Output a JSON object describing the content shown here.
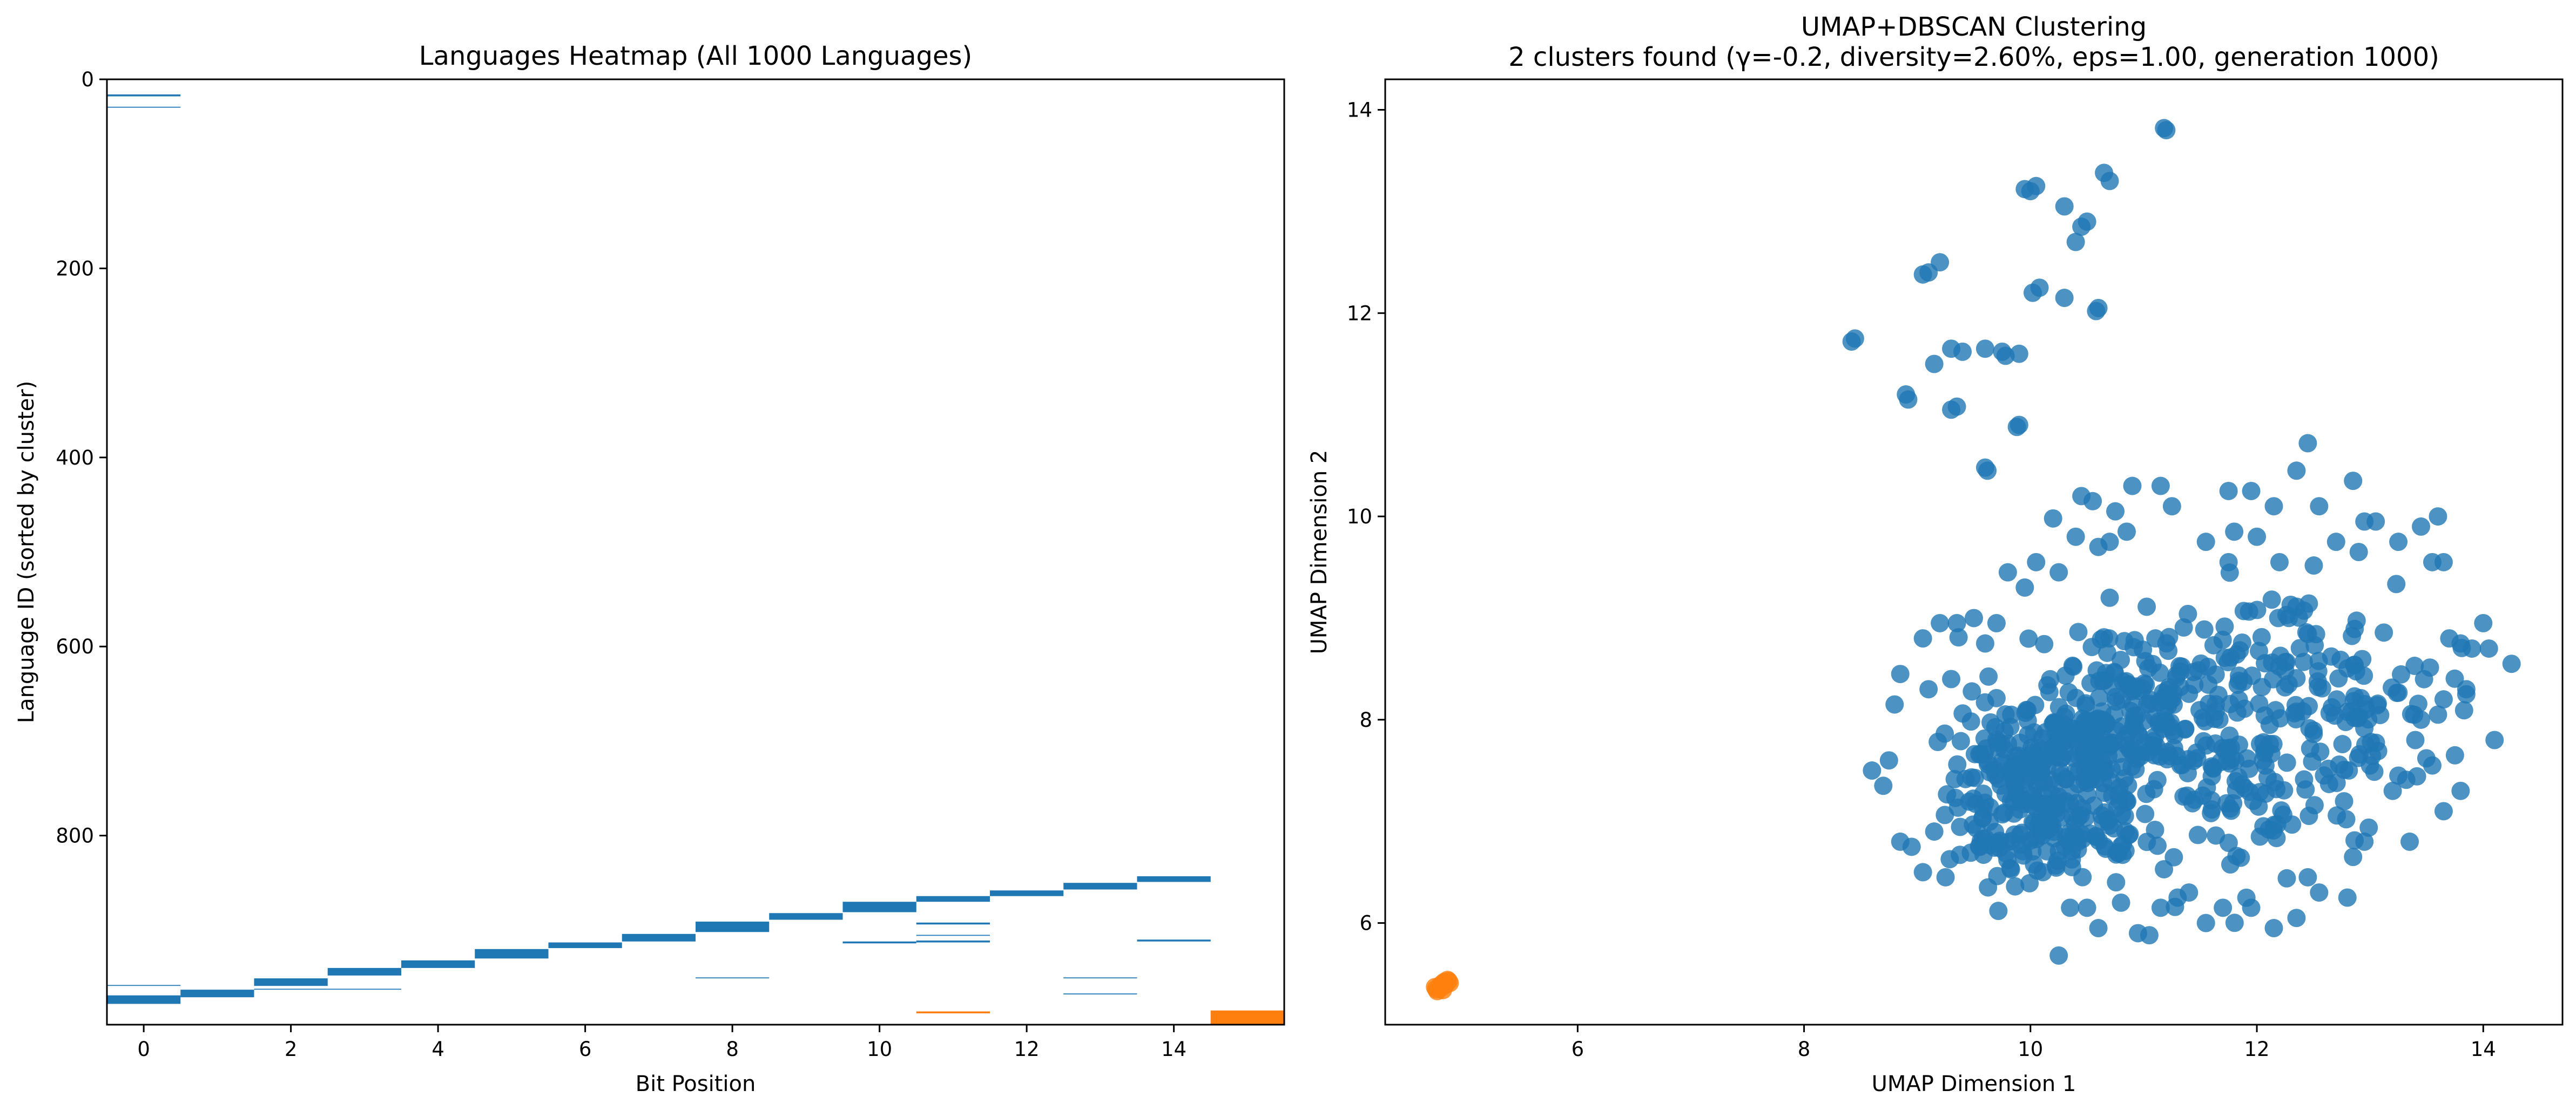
{
  "colors": {
    "cluster_0": "#1f77b4",
    "cluster_1": "#ff7f0e",
    "axes": "#000000"
  },
  "heatmap": {
    "title": "Languages Heatmap (All 1000 Languages)",
    "xlabel": "Bit Position",
    "ylabel": "Language ID (sorted by cluster)",
    "xticks": [
      "0",
      "2",
      "4",
      "6",
      "8",
      "10",
      "12",
      "14"
    ],
    "yticks": [
      "0",
      "200",
      "400",
      "600",
      "800"
    ]
  },
  "scatter": {
    "title_line1": "UMAP+DBSCAN Clustering",
    "title_line2": "2 clusters found (γ=-0.2, diversity=2.60%, eps=1.00, generation 1000)",
    "xlabel": "UMAP Dimension 1",
    "ylabel": "UMAP Dimension 2",
    "xticks": [
      "6",
      "8",
      "10",
      "12",
      "14"
    ],
    "yticks": [
      "6",
      "8",
      "10",
      "12",
      "14"
    ]
  },
  "chart_data": [
    {
      "type": "heatmap",
      "title": "Languages Heatmap (All 1000 Languages)",
      "xlabel": "Bit Position",
      "ylabel": "Language ID (sorted by cluster)",
      "xlim": [
        -0.5,
        15.5
      ],
      "ylim": [
        1000,
        0
      ],
      "n_rows": 1000,
      "n_cols": 16,
      "values_legend": "0 = bit off (white); 1 = bit on, colored by cluster (0 = blue, 1 = orange)",
      "cells": [
        {
          "col": 0,
          "rows": [
            16,
            18
          ],
          "cluster": 0
        },
        {
          "col": 0,
          "rows": [
            29,
            30
          ],
          "cluster": 0
        },
        {
          "col": 0,
          "rows": [
            958,
            959
          ],
          "cluster": 0
        },
        {
          "col": 0,
          "rows": [
            969,
            978
          ],
          "cluster": 0
        },
        {
          "col": 1,
          "rows": [
            963,
            971
          ],
          "cluster": 0
        },
        {
          "col": 2,
          "rows": [
            951,
            959
          ],
          "cluster": 0
        },
        {
          "col": 2,
          "rows": [
            962,
            963
          ],
          "cluster": 0
        },
        {
          "col": 3,
          "rows": [
            940,
            948
          ],
          "cluster": 0
        },
        {
          "col": 3,
          "rows": [
            962,
            963
          ],
          "cluster": 0
        },
        {
          "col": 4,
          "rows": [
            932,
            940
          ],
          "cluster": 0
        },
        {
          "col": 5,
          "rows": [
            920,
            930
          ],
          "cluster": 0
        },
        {
          "col": 6,
          "rows": [
            913,
            919
          ],
          "cluster": 0
        },
        {
          "col": 7,
          "rows": [
            904,
            912
          ],
          "cluster": 0
        },
        {
          "col": 8,
          "rows": [
            891,
            902
          ],
          "cluster": 0
        },
        {
          "col": 8,
          "rows": [
            950,
            951
          ],
          "cluster": 0
        },
        {
          "col": 9,
          "rows": [
            882,
            889
          ],
          "cluster": 0
        },
        {
          "col": 10,
          "rows": [
            870,
            881
          ],
          "cluster": 0
        },
        {
          "col": 10,
          "rows": [
            912,
            914
          ],
          "cluster": 0
        },
        {
          "col": 11,
          "rows": [
            864,
            870
          ],
          "cluster": 0
        },
        {
          "col": 11,
          "rows": [
            892,
            894
          ],
          "cluster": 0
        },
        {
          "col": 11,
          "rows": [
            905,
            906
          ],
          "cluster": 0
        },
        {
          "col": 11,
          "rows": [
            911,
            913
          ],
          "cluster": 0
        },
        {
          "col": 11,
          "rows": [
            986,
            988
          ],
          "cluster": 1
        },
        {
          "col": 12,
          "rows": [
            858,
            864
          ],
          "cluster": 0
        },
        {
          "col": 13,
          "rows": [
            850,
            857
          ],
          "cluster": 0
        },
        {
          "col": 13,
          "rows": [
            950,
            951
          ],
          "cluster": 0
        },
        {
          "col": 13,
          "rows": [
            967,
            968
          ],
          "cluster": 0
        },
        {
          "col": 14,
          "rows": [
            843,
            849
          ],
          "cluster": 0
        },
        {
          "col": 14,
          "rows": [
            910,
            912
          ],
          "cluster": 0
        },
        {
          "col": 15,
          "rows": [
            985,
            1000
          ],
          "cluster": 1
        }
      ]
    },
    {
      "type": "scatter",
      "title": "UMAP+DBSCAN Clustering\n2 clusters found (γ=-0.2, diversity=2.60%, eps=1.00, generation 1000)",
      "xlabel": "UMAP Dimension 1",
      "ylabel": "UMAP Dimension 2",
      "xlim": [
        4.3,
        14.7
      ],
      "ylim": [
        5.0,
        14.3
      ],
      "series": [
        {
          "cluster": 0,
          "color": "#1f77b4",
          "points": [
            [
              11.2,
              13.8
            ],
            [
              11.18,
              13.82
            ],
            [
              10.65,
              13.38
            ],
            [
              10.7,
              13.3
            ],
            [
              10.05,
              13.25
            ],
            [
              10.0,
              13.2
            ],
            [
              9.95,
              13.22
            ],
            [
              10.3,
              13.05
            ],
            [
              10.5,
              12.9
            ],
            [
              10.45,
              12.85
            ],
            [
              10.4,
              12.7
            ],
            [
              9.1,
              12.4
            ],
            [
              9.05,
              12.38
            ],
            [
              9.2,
              12.5
            ],
            [
              10.02,
              12.2
            ],
            [
              10.08,
              12.25
            ],
            [
              10.3,
              12.15
            ],
            [
              10.6,
              12.05
            ],
            [
              10.58,
              12.02
            ],
            [
              8.45,
              11.75
            ],
            [
              8.42,
              11.72
            ],
            [
              8.9,
              11.2
            ],
            [
              8.92,
              11.15
            ],
            [
              9.3,
              11.65
            ],
            [
              9.4,
              11.62
            ],
            [
              9.6,
              11.65
            ],
            [
              9.75,
              11.62
            ],
            [
              9.78,
              11.58
            ],
            [
              9.9,
              11.6
            ],
            [
              9.3,
              11.05
            ],
            [
              9.35,
              11.08
            ],
            [
              9.15,
              11.5
            ],
            [
              9.9,
              10.9
            ],
            [
              9.88,
              10.88
            ],
            [
              9.62,
              10.45
            ],
            [
              9.6,
              10.48
            ],
            [
              10.2,
              9.98
            ],
            [
              10.45,
              10.2
            ],
            [
              10.55,
              10.15
            ],
            [
              10.75,
              10.05
            ],
            [
              10.9,
              10.3
            ],
            [
              11.15,
              10.3
            ],
            [
              11.25,
              10.1
            ],
            [
              10.85,
              9.85
            ],
            [
              10.4,
              9.8
            ],
            [
              10.6,
              9.7
            ],
            [
              10.7,
              9.75
            ],
            [
              9.8,
              9.45
            ],
            [
              9.95,
              9.3
            ],
            [
              10.05,
              9.55
            ],
            [
              10.25,
              9.45
            ],
            [
              10.7,
              9.2
            ],
            [
              11.75,
              10.25
            ],
            [
              11.95,
              10.25
            ],
            [
              12.15,
              10.1
            ],
            [
              12.45,
              10.72
            ],
            [
              12.35,
              10.45
            ],
            [
              12.85,
              10.35
            ],
            [
              12.55,
              10.1
            ],
            [
              12.95,
              9.95
            ],
            [
              13.05,
              9.95
            ],
            [
              13.45,
              9.9
            ],
            [
              13.6,
              10.0
            ],
            [
              11.8,
              9.85
            ],
            [
              11.55,
              9.75
            ],
            [
              12.0,
              9.8
            ],
            [
              12.7,
              9.75
            ],
            [
              13.25,
              9.75
            ],
            [
              13.65,
              9.55
            ],
            [
              13.55,
              9.55
            ],
            [
              12.9,
              9.65
            ],
            [
              12.2,
              9.55
            ],
            [
              11.75,
              9.55
            ],
            [
              9.2,
              8.95
            ],
            [
              9.35,
              8.95
            ],
            [
              8.85,
              8.45
            ],
            [
              9.1,
              8.3
            ],
            [
              9.3,
              8.4
            ],
            [
              8.8,
              8.15
            ],
            [
              9.05,
              8.8
            ],
            [
              9.5,
              9.0
            ],
            [
              9.7,
              8.95
            ],
            [
              9.6,
              8.75
            ],
            [
              8.6,
              7.5
            ],
            [
              8.7,
              7.35
            ],
            [
              8.75,
              7.6
            ],
            [
              8.85,
              6.8
            ],
            [
              8.95,
              6.75
            ],
            [
              9.05,
              6.5
            ],
            [
              9.25,
              6.45
            ],
            [
              9.15,
              6.9
            ],
            [
              13.9,
              8.7
            ],
            [
              14.0,
              8.95
            ],
            [
              14.25,
              8.55
            ],
            [
              14.05,
              8.7
            ],
            [
              13.8,
              8.75
            ],
            [
              13.7,
              8.8
            ],
            [
              13.85,
              8.3
            ],
            [
              13.65,
              8.2
            ],
            [
              13.45,
              8.0
            ],
            [
              13.6,
              8.05
            ],
            [
              13.4,
              7.8
            ],
            [
              13.55,
              7.55
            ],
            [
              13.75,
              7.65
            ],
            [
              13.85,
              8.25
            ],
            [
              14.1,
              7.8
            ],
            [
              13.8,
              7.3
            ],
            [
              13.65,
              7.1
            ],
            [
              13.25,
              7.45
            ],
            [
              13.2,
              7.3
            ],
            [
              13.35,
              6.8
            ],
            [
              12.85,
              6.65
            ],
            [
              12.95,
              6.8
            ],
            [
              12.45,
              6.45
            ],
            [
              12.55,
              6.3
            ],
            [
              12.35,
              6.05
            ],
            [
              12.15,
              5.95
            ],
            [
              12.8,
              6.25
            ],
            [
              11.95,
              6.15
            ],
            [
              11.55,
              6.0
            ],
            [
              11.3,
              6.25
            ],
            [
              10.25,
              5.68
            ],
            [
              10.6,
              5.95
            ],
            [
              10.95,
              5.9
            ],
            [
              11.05,
              5.88
            ],
            [
              10.35,
              6.15
            ],
            [
              10.5,
              6.15
            ],
            [
              10.8,
              6.2
            ],
            [
              11.15,
              6.15
            ],
            [
              11.4,
              6.3
            ],
            [
              11.7,
              6.15
            ]
          ],
          "dense_regions": [
            {
              "center": [
                9.8,
                7.3
              ],
              "spread": [
                0.45,
                0.75
              ],
              "n": 150
            },
            {
              "center": [
                10.55,
                7.75
              ],
              "spread": [
                0.55,
                0.45
              ],
              "n": 160
            },
            {
              "center": [
                10.4,
                6.85
              ],
              "spread": [
                0.65,
                0.45
              ],
              "n": 90
            },
            {
              "center": [
                11.25,
                8.1
              ],
              "spread": [
                0.55,
                0.55
              ],
              "n": 80
            },
            {
              "center": [
                12.2,
                8.3
              ],
              "spread": [
                0.85,
                0.85
              ],
              "n": 110
            },
            {
              "center": [
                11.9,
                7.2
              ],
              "spread": [
                0.85,
                0.7
              ],
              "n": 70
            },
            {
              "center": [
                12.9,
                8.05
              ],
              "spread": [
                0.65,
                0.75
              ],
              "n": 55
            },
            {
              "center": [
                10.7,
                8.55
              ],
              "spread": [
                0.85,
                0.4
              ],
              "n": 40
            }
          ]
        },
        {
          "cluster": 1,
          "color": "#ff7f0e",
          "points": [
            [
              4.75,
              5.35
            ],
            [
              4.78,
              5.38
            ],
            [
              4.8,
              5.4
            ],
            [
              4.82,
              5.42
            ],
            [
              4.85,
              5.44
            ],
            [
              4.76,
              5.33
            ],
            [
              4.83,
              5.39
            ],
            [
              4.79,
              5.36
            ],
            [
              4.87,
              5.41
            ],
            [
              4.81,
              5.34
            ],
            [
              4.74,
              5.37
            ],
            [
              4.86,
              5.43
            ]
          ]
        }
      ]
    }
  ]
}
